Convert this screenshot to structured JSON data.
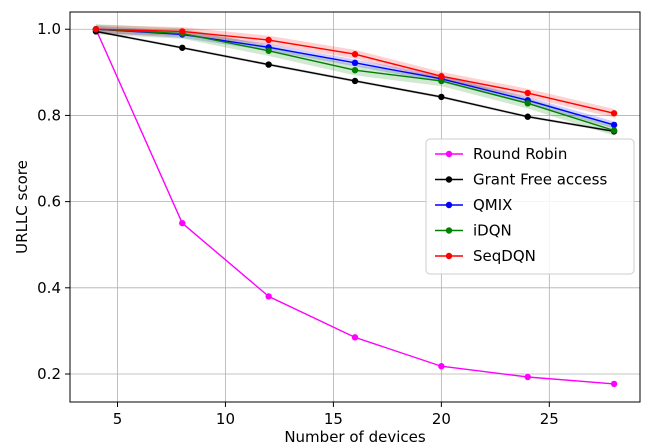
{
  "chart_data": {
    "type": "line",
    "title": "",
    "xlabel": "Number of devices",
    "ylabel": "URLLC score",
    "x": [
      4,
      8,
      12,
      16,
      20,
      24,
      28
    ],
    "xlim": [
      2.8,
      29.2
    ],
    "ylim": [
      0.135,
      1.04
    ],
    "xticks": [
      5,
      10,
      15,
      20,
      25
    ],
    "yticks": [
      0.2,
      0.4,
      0.6,
      0.8,
      1.0
    ],
    "xtick_labels": [
      "5",
      "10",
      "15",
      "20",
      "25"
    ],
    "ytick_labels": [
      "0.2",
      "0.4",
      "0.6",
      "0.8",
      "1.0"
    ],
    "grid": true,
    "legend_position": "center-right",
    "series": [
      {
        "name": "Round Robin",
        "color": "#ff00ff",
        "values": [
          1.0,
          0.55,
          0.38,
          0.285,
          0.218,
          0.193,
          0.177
        ],
        "band": 0.0
      },
      {
        "name": "Grant Free access",
        "color": "#000000",
        "values": [
          0.995,
          0.957,
          0.918,
          0.88,
          0.843,
          0.797,
          0.763
        ],
        "band": 0.003
      },
      {
        "name": "QMIX",
        "color": "#0000ff",
        "values": [
          1.0,
          0.988,
          0.958,
          0.922,
          0.885,
          0.835,
          0.778
        ],
        "band": 0.008
      },
      {
        "name": "iDQN",
        "color": "#008000",
        "values": [
          1.0,
          0.99,
          0.95,
          0.905,
          0.88,
          0.828,
          0.765
        ],
        "band": 0.012
      },
      {
        "name": "SeqDQN",
        "color": "#ff0000",
        "values": [
          1.0,
          0.995,
          0.975,
          0.942,
          0.891,
          0.852,
          0.805
        ],
        "band": 0.01
      }
    ]
  }
}
